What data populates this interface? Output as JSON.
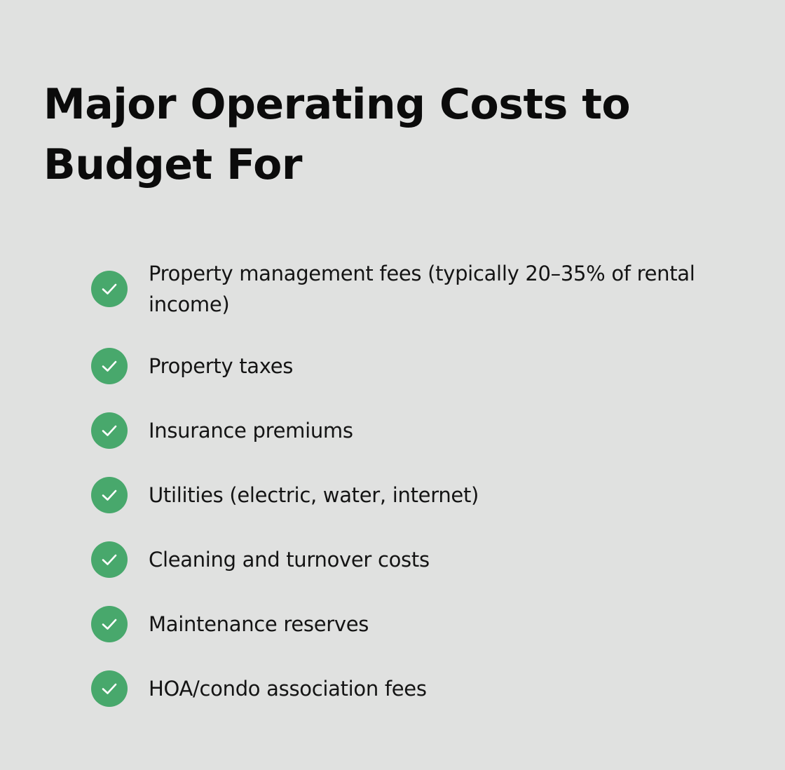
{
  "title": "Major Operating Costs to Budget For",
  "colors": {
    "background": "#e0e1e0",
    "check_circle": "#48a86c",
    "check_mark": "#ffffff",
    "text": "#141414"
  },
  "items": [
    {
      "label": "Property management fees (typically 20–35% of rental income)",
      "icon": "check-circle-icon"
    },
    {
      "label": "Property taxes",
      "icon": "check-circle-icon"
    },
    {
      "label": "Insurance premiums",
      "icon": "check-circle-icon"
    },
    {
      "label": "Utilities (electric, water, internet)",
      "icon": "check-circle-icon"
    },
    {
      "label": "Cleaning and turnover costs",
      "icon": "check-circle-icon"
    },
    {
      "label": "Maintenance reserves",
      "icon": "check-circle-icon"
    },
    {
      "label": "HOA/condo association fees",
      "icon": "check-circle-icon"
    }
  ]
}
